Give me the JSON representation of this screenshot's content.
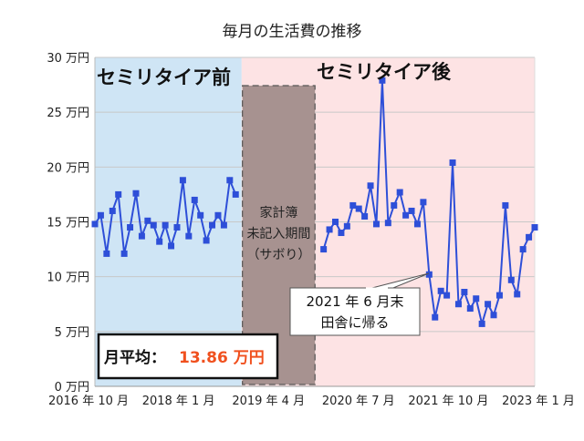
{
  "chart_data": {
    "type": "line",
    "title": "毎月の生活費の推移",
    "ylim": [
      0,
      30
    ],
    "y_ticks": [
      "0 万円",
      "5 万円",
      "10 万円",
      "15 万円",
      "20 万円",
      "25 万円",
      "30 万円"
    ],
    "x_ticks": [
      "2016 年 10 月",
      "2018 年 1 月",
      "2019 年 4 月",
      "2020 年 7 月",
      "2021 年 10 月",
      "2023 年 1 月"
    ],
    "xlim": [
      "2016-10",
      "2023-01"
    ],
    "grid": true,
    "series_color": "#2e4fd8",
    "series": [
      {
        "x": [
          "2016-10",
          "2016-11",
          "2016-12",
          "2017-01",
          "2017-02",
          "2017-03",
          "2017-04",
          "2017-05",
          "2017-06",
          "2017-07",
          "2017-08",
          "2017-09",
          "2017-10",
          "2017-11",
          "2017-12",
          "2018-01",
          "2018-02",
          "2018-03",
          "2018-04",
          "2018-05",
          "2018-06",
          "2018-07",
          "2018-08",
          "2018-09",
          "2018-10"
        ],
        "values": [
          14.8,
          15.6,
          12.1,
          16.0,
          17.5,
          12.1,
          14.5,
          17.6,
          13.7,
          15.1,
          14.7,
          13.2,
          14.7,
          12.8,
          14.5,
          18.8,
          13.7,
          17.0,
          15.6,
          13.3,
          14.7,
          15.6,
          14.7,
          18.8,
          17.5
        ]
      },
      {
        "x": [
          "2020-01",
          "2020-02",
          "2020-03",
          "2020-04",
          "2020-05",
          "2020-06",
          "2020-07",
          "2020-08",
          "2020-09",
          "2020-10",
          "2020-11",
          "2020-12",
          "2021-01",
          "2021-02",
          "2021-03",
          "2021-04",
          "2021-05",
          "2021-06",
          "2021-07",
          "2021-08",
          "2021-09",
          "2021-10",
          "2021-11",
          "2021-12",
          "2022-01",
          "2022-02",
          "2022-03",
          "2022-04",
          "2022-05",
          "2022-06",
          "2022-07",
          "2022-08",
          "2022-09",
          "2022-10",
          "2022-11",
          "2022-12",
          "2023-01"
        ],
        "values": [
          12.5,
          14.3,
          15.0,
          14.0,
          14.6,
          16.5,
          16.2,
          15.5,
          18.3,
          14.8,
          27.9,
          14.9,
          16.5,
          17.7,
          15.6,
          16.0,
          14.8,
          16.8,
          10.2,
          6.3,
          8.7,
          8.3,
          20.4,
          7.5,
          8.6,
          7.1,
          8.0,
          5.7,
          7.5,
          6.5,
          8.3,
          16.5,
          9.7,
          8.4,
          12.5,
          13.6,
          14.5
        ]
      }
    ],
    "regions": [
      {
        "label": "セミリタイア前",
        "from": "2016-10",
        "to": "2018-11",
        "color": "#cfe5f5"
      },
      {
        "label": "セミリタイア後",
        "from": "2018-11",
        "to": "2023-01",
        "color": "#fde3e4"
      },
      {
        "label_lines": [
          "家計簿",
          "未記入期間",
          "（サボり）"
        ],
        "from": "2018-11",
        "to": "2019-12",
        "color": "#a79290"
      }
    ],
    "annotations": {
      "callout_lines": [
        "2021 年 6 月末",
        "田舎に帰る"
      ],
      "callout_target": "2021-06",
      "average_label": "月平均：",
      "average_value": "13.86 万円",
      "average_color": "#f0501e"
    }
  }
}
